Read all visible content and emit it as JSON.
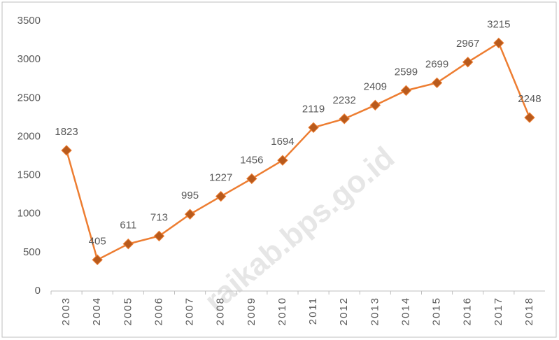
{
  "chart_data": {
    "type": "line",
    "categories": [
      "2003",
      "2004",
      "2005",
      "2006",
      "2007",
      "2008",
      "2009",
      "2010",
      "2011",
      "2012",
      "2013",
      "2014",
      "2015",
      "2016",
      "2017",
      "2018"
    ],
    "values": [
      1823,
      405,
      611,
      713,
      995,
      1227,
      1456,
      1694,
      2119,
      2232,
      2409,
      2599,
      2699,
      2967,
      3215,
      2248
    ],
    "color": "#ed7d31",
    "marker_color": "#b85a1c",
    "ylim": [
      0,
      3500
    ],
    "yticks": [
      0,
      500,
      1000,
      1500,
      2000,
      2500,
      3000,
      3500
    ],
    "grid": false,
    "watermark": "raikab.bps.go.id"
  }
}
